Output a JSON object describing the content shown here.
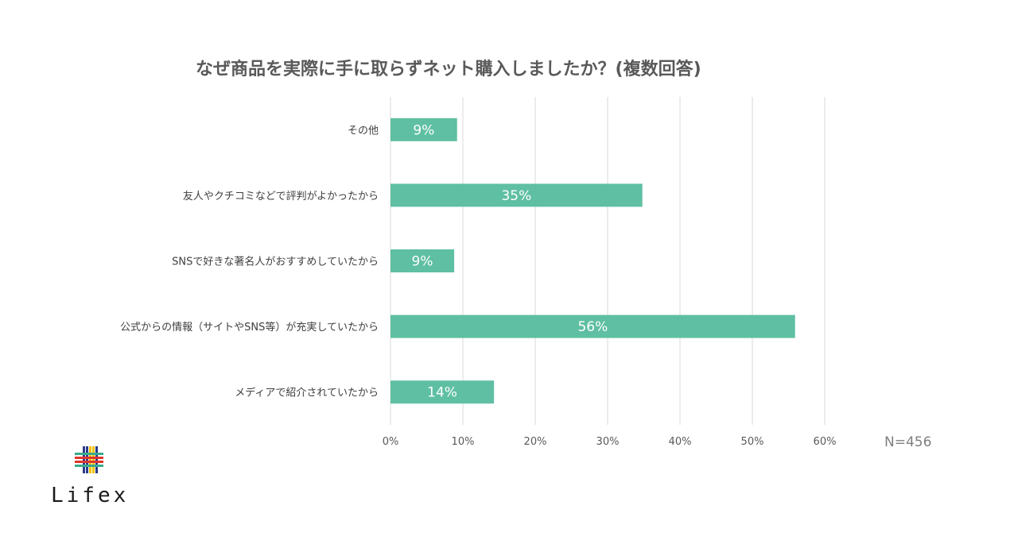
{
  "chart_data": {
    "type": "bar",
    "orientation": "horizontal",
    "title": "なぜ商品を実際に手に取らずネット購入しましたか？(複数回答)",
    "categories": [
      "その他",
      "友人やクチコミなどで評判がよかったから",
      "SNSで好きな著名人がおすすめしていたから",
      "公式からの情報（サイトやSNS等）が充実していたから",
      "メディアで紹介されていたから"
    ],
    "values": [
      9.2,
      34.8,
      8.8,
      55.9,
      14.3
    ],
    "data_labels": [
      "9%",
      "35%",
      "9%",
      "56%",
      "14%"
    ],
    "xlim": [
      0,
      60
    ],
    "x_ticks": [
      0,
      10,
      20,
      30,
      40,
      50,
      60
    ],
    "x_tick_labels": [
      "0%",
      "10%",
      "20%",
      "30%",
      "40%",
      "50%",
      "60%"
    ],
    "grid": "vertical",
    "bar_color": "#5fbfa2",
    "note": "N=456",
    "legend": "none"
  },
  "logo": {
    "text": "Lifex",
    "colors": [
      "#3aaa8c",
      "#e0352b",
      "#f2c200",
      "#2b3a8c"
    ]
  }
}
